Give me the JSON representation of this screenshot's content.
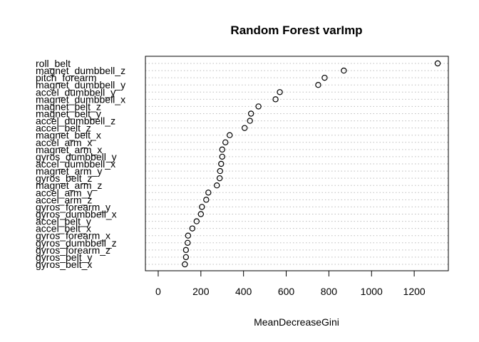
{
  "chart_data": {
    "type": "scatter",
    "title": "Random Forest varImp",
    "xlabel": "MeanDecreaseGini",
    "ylabel": "",
    "xlim": [
      -60,
      1360
    ],
    "xticks": [
      0,
      200,
      400,
      600,
      800,
      1000,
      1200
    ],
    "grid": "dotted horizontal guides",
    "legend": "none",
    "categories": [
      "roll_belt",
      "magnet_dumbbell_z",
      "pitch_forearm",
      "magnet_dumbbell_y",
      "accel_dumbbell_y",
      "magnet_dumbbell_x",
      "magnet_belt_z",
      "magnet_belt_y",
      "accel_dumbbell_z",
      "accel_belt_z",
      "magnet_belt_x",
      "accel_arm_x",
      "magnet_arm_x",
      "gyros_dumbbell_y",
      "accel_dumbbell_x",
      "magnet_arm_y",
      "gyros_belt_z",
      "magnet_arm_z",
      "accel_arm_y",
      "accel_arm_z",
      "gyros_forearm_y",
      "gyros_dumbbell_x",
      "accel_belt_y",
      "accel_belt_x",
      "gyros_forearm_x",
      "gyros_dumbbell_z",
      "gyros_forearm_z",
      "gyros_belt_y",
      "gyros_belt_x"
    ],
    "values": [
      1310,
      870,
      780,
      750,
      570,
      550,
      470,
      435,
      430,
      405,
      335,
      315,
      300,
      300,
      295,
      290,
      288,
      275,
      235,
      225,
      205,
      200,
      180,
      160,
      140,
      138,
      130,
      130,
      125
    ]
  }
}
